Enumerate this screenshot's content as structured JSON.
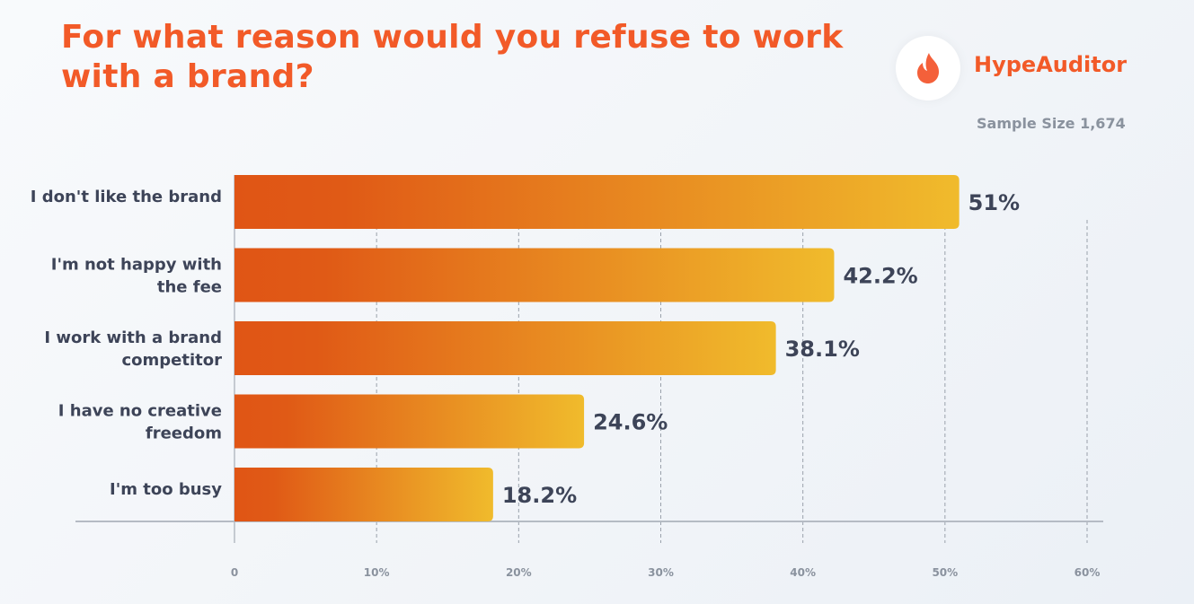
{
  "header": {
    "title": "For what reason would you refuse to work with a brand?",
    "brand": "HypeAuditor",
    "sample_size": "Sample Size 1,674",
    "logo_icon": "flame-icon"
  },
  "colors": {
    "title": "#f25a28",
    "bar_start": "#e05515",
    "bar_end": "#f0bb2c",
    "label": "#3d4458",
    "tick": "#8a929e"
  },
  "chart_data": {
    "type": "bar",
    "orientation": "horizontal",
    "title": "For what reason would you refuse to work with a brand?",
    "categories": [
      [
        "I don't like the brand"
      ],
      [
        "I'm not happy with",
        "the fee"
      ],
      [
        "I work with a brand",
        "competitor"
      ],
      [
        "I have no creative",
        "freedom"
      ],
      [
        "I'm too busy"
      ]
    ],
    "values": [
      51,
      42.2,
      38.1,
      24.6,
      18.2
    ],
    "value_labels": [
      "51%",
      "42.2%",
      "38.1%",
      "24.6%",
      "18.2%"
    ],
    "xlim": [
      0,
      60
    ],
    "x_ticks": [
      0,
      10,
      20,
      30,
      40,
      50,
      60
    ],
    "x_tick_labels": [
      "0",
      "10%",
      "20%",
      "30%",
      "40%",
      "50%",
      "60%"
    ],
    "grid": "vertical dashed",
    "xlabel": "",
    "ylabel": ""
  }
}
